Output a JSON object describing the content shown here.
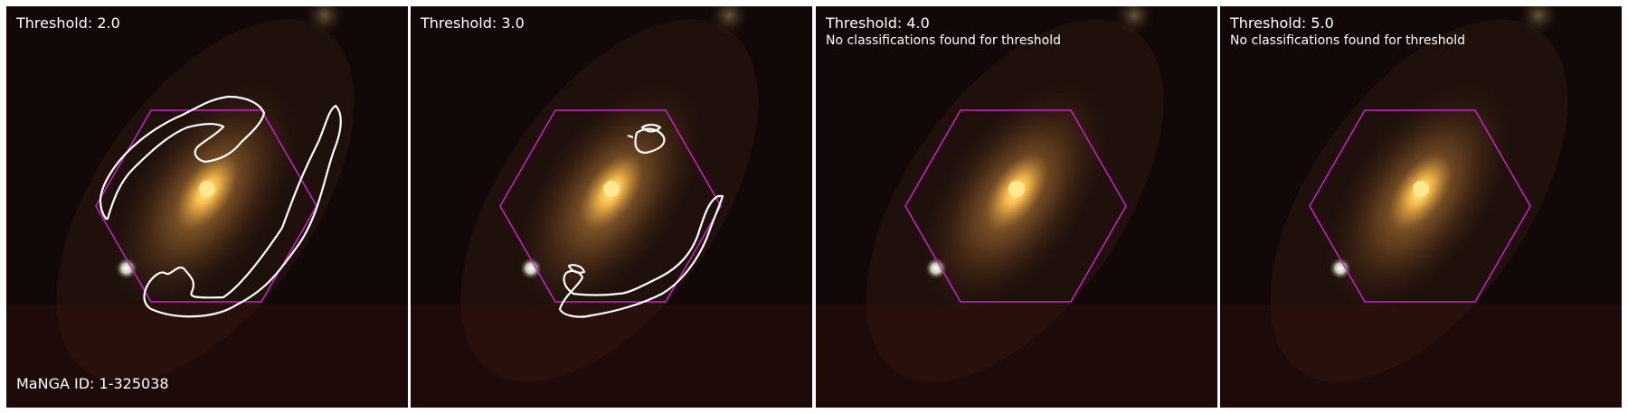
{
  "panels": [
    {
      "threshold_label": "Threshold: 2.0",
      "note": "",
      "id_label": "MaNGA ID: 1-325038",
      "has_contours": true
    },
    {
      "threshold_label": "Threshold: 3.0",
      "note": "",
      "id_label": "",
      "has_contours": true
    },
    {
      "threshold_label": "Threshold: 4.0",
      "note": "No classifications found for threshold",
      "id_label": "",
      "has_contours": false
    },
    {
      "threshold_label": "Threshold: 5.0",
      "note": "No classifications found for threshold",
      "id_label": "",
      "has_contours": false
    }
  ],
  "colors": {
    "hexagon": "#cc22cc",
    "contour": "#ffffff",
    "background": "#120808",
    "galaxy_core": "#ffd870",
    "galaxy_halo": "#b07838"
  },
  "icons": [
    "galaxy-image",
    "ifu-hexagon",
    "star-point",
    "arm-contour"
  ]
}
